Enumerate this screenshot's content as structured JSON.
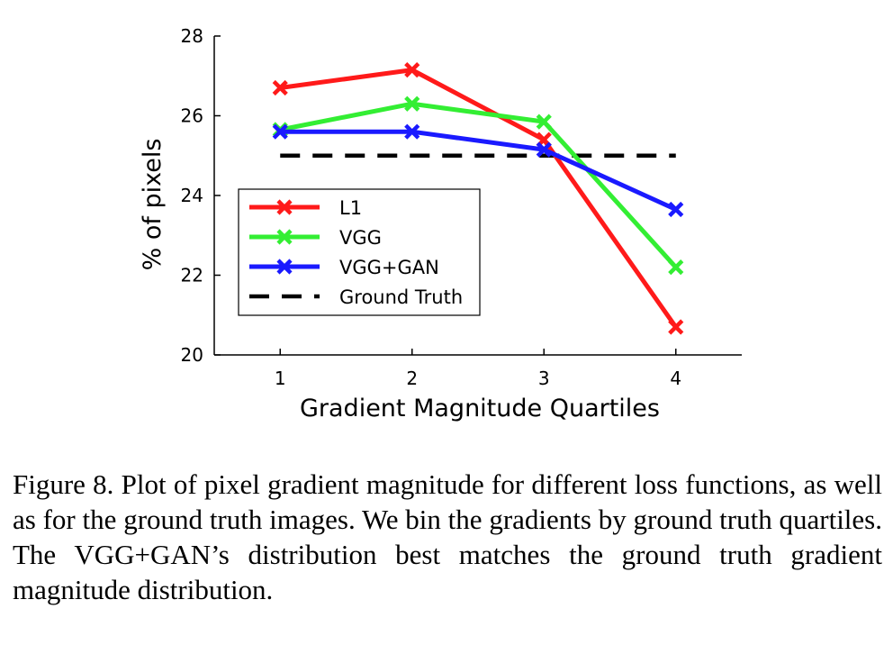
{
  "chart_data": {
    "type": "line",
    "x": [
      1,
      2,
      3,
      4
    ],
    "xticks": [
      "1",
      "2",
      "3",
      "4"
    ],
    "yticks": [
      "20",
      "22",
      "24",
      "26",
      "28"
    ],
    "ylim": [
      20,
      28
    ],
    "xlim": [
      0.5,
      4.5
    ],
    "xlabel": "Gradient Magnitude Quartiles",
    "ylabel": "% of pixels",
    "legend_position": "bottom-left",
    "grid": false,
    "series": [
      {
        "name": "L1",
        "color": "#ff1a1a",
        "marker": "x",
        "values": [
          26.7,
          27.15,
          25.4,
          20.7
        ]
      },
      {
        "name": "VGG",
        "color": "#33ee33",
        "marker": "x",
        "values": [
          25.65,
          26.3,
          25.85,
          22.2
        ]
      },
      {
        "name": "VGG+GAN",
        "color": "#1a1aff",
        "marker": "x",
        "values": [
          25.6,
          25.6,
          25.15,
          23.65
        ]
      },
      {
        "name": "Ground Truth",
        "color": "#000000",
        "dashed": true,
        "values": [
          25,
          25,
          25,
          25
        ]
      }
    ]
  },
  "caption": "Figure 8. Plot of pixel gradient magnitude for different loss functions, as well as for the ground truth images.  We bin the gradients by ground truth quartiles. The VGG+GAN’s distribution best matches the ground truth gradient magnitude distribution."
}
